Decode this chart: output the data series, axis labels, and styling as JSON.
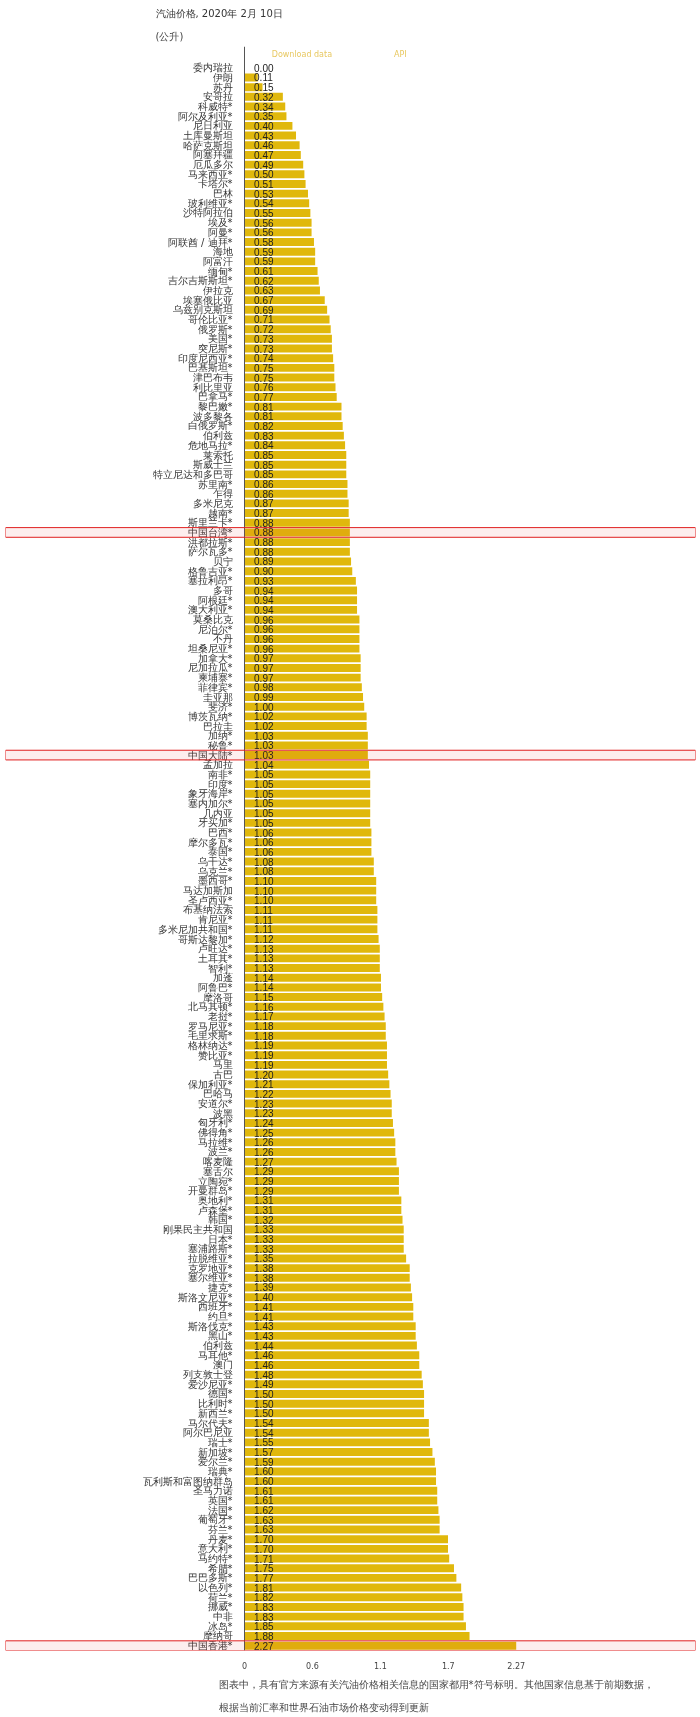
{
  "chart_data": {
    "type": "bar",
    "orientation": "horizontal",
    "title": "汽油价格, 2020年 2月 10日",
    "subtitle": "(公升)",
    "categories": [
      "委内瑞拉",
      "伊朗",
      "苏丹",
      "安哥拉",
      "科威特*",
      "阿尔及利亚*",
      "尼日利亚",
      "土库曼斯坦",
      "哈萨克斯坦",
      "阿塞拜疆",
      "厄瓜多尔",
      "马来西亚*",
      "卡塔尔*",
      "巴林",
      "玻利维亚*",
      "沙特阿拉伯",
      "埃及*",
      "阿曼*",
      "阿联酋 / 迪拜*",
      "海地",
      "阿富汗",
      "缅甸*",
      "吉尔吉斯斯坦*",
      "伊拉克",
      "埃塞俄比亚",
      "乌兹别克斯坦",
      "哥伦比亚*",
      "俄罗斯*",
      "美国*",
      "突尼斯*",
      "印度尼西亚*",
      "巴基斯坦*",
      "津巴布韦",
      "利比里亚",
      "巴拿马*",
      "黎巴嫩*",
      "波多黎各",
      "白俄罗斯*",
      "伯利兹",
      "危地马拉*",
      "莱索托",
      "斯威士兰",
      "特立尼达和多巴哥",
      "苏里南*",
      "乍得",
      "多米尼克",
      "越南*",
      "斯里兰卡*",
      "中国台湾*",
      "洪都拉斯*",
      "萨尔瓦多*",
      "贝宁",
      "格鲁吉亚*",
      "塞拉利昂*",
      "多哥",
      "阿根廷*",
      "澳大利亚*",
      "莫桑比克",
      "尼泊尔*",
      "不丹",
      "坦桑尼亚*",
      "加拿大*",
      "尼加拉瓜*",
      "柬埔寨*",
      "菲律宾*",
      "圭亚那",
      "斐济*",
      "博茨瓦纳*",
      "巴拉圭",
      "加纳*",
      "秘鲁*",
      "中国大陆*",
      "孟加拉",
      "南非*",
      "印度*",
      "象牙海岸*",
      "塞内加尔*",
      "几内亚",
      "牙买加*",
      "巴西*",
      "摩尔多瓦*",
      "泰国*",
      "乌干达*",
      "乌克兰*",
      "墨西哥*",
      "马达加斯加",
      "圣卢西亚*",
      "布基纳法索",
      "肯尼亚*",
      "多米尼加共和国*",
      "哥斯达黎加*",
      "卢旺达*",
      "土耳其*",
      "智利*",
      "加蓬",
      "阿鲁巴*",
      "摩洛哥",
      "北马其顿*",
      "老挝*",
      "罗马尼亚*",
      "毛里求斯*",
      "格林纳达*",
      "赞比亚*",
      "马里",
      "古巴",
      "保加利亚*",
      "巴哈马",
      "安道尔*",
      "波黑",
      "匈牙利*",
      "佛得角*",
      "马拉维*",
      "波兰*",
      "喀麦隆",
      "塞舌尔",
      "立陶宛*",
      "开曼群岛*",
      "奥地利*",
      "卢森堡*",
      "韩国*",
      "刚果民主共和国",
      "日本*",
      "塞浦路斯*",
      "拉脱维亚*",
      "克罗地亚*",
      "塞尔维亚*",
      "捷克*",
      "斯洛文尼亚*",
      "西班牙*",
      "约旦*",
      "斯洛伐克*",
      "黑山*",
      "伯利兹",
      "马耳他*",
      "澳门",
      "列支敦士登",
      "爱沙尼亚*",
      "德国*",
      "比利时*",
      "新西兰*",
      "马尔代夫*",
      "阿尔巴尼亚",
      "瑞士*",
      "新加坡*",
      "爱尔兰*",
      "瑞典*",
      "瓦利斯和富图纳群岛",
      "圣马力诺",
      "英国*",
      "法国*",
      "葡萄牙*",
      "芬兰*",
      "丹麦*",
      "意大利*",
      "马约特*",
      "希腊*",
      "巴巴多斯*",
      "以色列*",
      "荷兰*",
      "挪威*",
      "中非",
      "冰岛*",
      "摩纳哥",
      "中国香港*"
    ],
    "values": [
      0.0,
      0.11,
      0.15,
      0.32,
      0.34,
      0.35,
      0.4,
      0.43,
      0.46,
      0.47,
      0.49,
      0.5,
      0.51,
      0.53,
      0.54,
      0.55,
      0.56,
      0.56,
      0.58,
      0.59,
      0.59,
      0.61,
      0.62,
      0.63,
      0.67,
      0.69,
      0.71,
      0.72,
      0.73,
      0.73,
      0.74,
      0.75,
      0.75,
      0.76,
      0.77,
      0.81,
      0.81,
      0.82,
      0.83,
      0.84,
      0.85,
      0.85,
      0.85,
      0.86,
      0.86,
      0.87,
      0.87,
      0.88,
      0.88,
      0.88,
      0.88,
      0.89,
      0.9,
      0.93,
      0.94,
      0.94,
      0.94,
      0.96,
      0.96,
      0.96,
      0.96,
      0.97,
      0.97,
      0.97,
      0.98,
      0.99,
      1.0,
      1.02,
      1.02,
      1.03,
      1.03,
      1.03,
      1.04,
      1.05,
      1.05,
      1.05,
      1.05,
      1.05,
      1.05,
      1.06,
      1.06,
      1.06,
      1.08,
      1.08,
      1.1,
      1.1,
      1.1,
      1.11,
      1.11,
      1.11,
      1.12,
      1.13,
      1.13,
      1.13,
      1.14,
      1.14,
      1.15,
      1.16,
      1.17,
      1.18,
      1.18,
      1.19,
      1.19,
      1.19,
      1.2,
      1.21,
      1.22,
      1.23,
      1.23,
      1.24,
      1.25,
      1.26,
      1.26,
      1.27,
      1.29,
      1.29,
      1.29,
      1.31,
      1.31,
      1.32,
      1.33,
      1.33,
      1.33,
      1.35,
      1.38,
      1.38,
      1.39,
      1.4,
      1.41,
      1.41,
      1.43,
      1.43,
      1.44,
      1.46,
      1.46,
      1.48,
      1.49,
      1.5,
      1.5,
      1.5,
      1.54,
      1.54,
      1.55,
      1.57,
      1.59,
      1.6,
      1.6,
      1.61,
      1.61,
      1.62,
      1.63,
      1.63,
      1.7,
      1.7,
      1.71,
      1.75,
      1.77,
      1.81,
      1.82,
      1.83,
      1.83,
      1.85,
      1.88,
      2.27
    ],
    "value_labels": [
      "0.00",
      "0.11",
      "0.15",
      "0.32",
      "0.34",
      "0.35",
      "0.40",
      "0.43",
      "0.46",
      "0.47",
      "0.49",
      "0.50",
      "0.51",
      "0.53",
      "0.54",
      "0.55",
      "0.56",
      "0.56",
      "0.58",
      "0.59",
      "0.59",
      "0.61",
      "0.62",
      "0.63",
      "0.67",
      "0.69",
      "0.71",
      "0.72",
      "0.73",
      "0.73",
      "0.74",
      "0.75",
      "0.75",
      "0.76",
      "0.77",
      "0.81",
      "0.81",
      "0.82",
      "0.83",
      "0.84",
      "0.85",
      "0.85",
      "0.85",
      "0.86",
      "0.86",
      "0.87",
      "0.87",
      "0.88",
      "0.88",
      "0.88",
      "0.88",
      "0.89",
      "0.90",
      "0.93",
      "0.94",
      "0.94",
      "0.94",
      "0.96",
      "0.96",
      "0.96",
      "0.96",
      "0.97",
      "0.97",
      "0.97",
      "0.98",
      "0.99",
      "1.00",
      "1.02",
      "1.02",
      "1.03",
      "1.03",
      "1.03",
      "1.04",
      "1.05",
      "1.05",
      "1.05",
      "1.05",
      "1.05",
      "1.05",
      "1.06",
      "1.06",
      "1.06",
      "1.08",
      "1.08",
      "1.10",
      "1.10",
      "1.10",
      "1.11",
      "1.11",
      "1.11",
      "1.12",
      "1.13",
      "1.13",
      "1.13",
      "1.14",
      "1.14",
      "1.15",
      "1.16",
      "1.17",
      "1.18",
      "1.18",
      "1.19",
      "1.19",
      "1.19",
      "1.20",
      "1.21",
      "1.22",
      "1.23",
      "1.23",
      "1.24",
      "1.25",
      "1.26",
      "1.26",
      "1.27",
      "1.29",
      "1.29",
      "1.29",
      "1.31",
      "1.31",
      "1.32",
      "1.33",
      "1.33",
      "1.33",
      "1.35",
      "1.38",
      "1.38",
      "1.39",
      "1.40",
      "1.41",
      "1.41",
      "1.43",
      "1.43",
      "1.44",
      "1.46",
      "1.46",
      "1.48",
      "1.49",
      "1.50",
      "1.50",
      "1.50",
      "1.54",
      "1.54",
      "1.55",
      "1.57",
      "1.59",
      "1.60",
      "1.60",
      "1.61",
      "1.61",
      "1.62",
      "1.63",
      "1.63",
      "1.70",
      "1.70",
      "1.71",
      "1.75",
      "1.77",
      "1.81",
      "1.82",
      "1.83",
      "1.83",
      "1.85",
      "1.88",
      "2.27"
    ],
    "color": "#e0b80c",
    "xlim": [
      0,
      2.27
    ],
    "xticks": [
      0,
      {
        "value": 0.5675,
        "label": "0.6"
      },
      {
        "value": 1.135,
        "label": "1.1"
      },
      {
        "value": 1.7025,
        "label": "1.7"
      },
      2.27
    ],
    "grid": false,
    "bands": [
      {
        "axis": "y",
        "from": "中国台湾*",
        "to": "中国台湾*",
        "color": "#e02020"
      },
      {
        "axis": "y",
        "from": "中国大陆*",
        "to": "中国大陆*",
        "color": "#e02020"
      },
      {
        "axis": "y",
        "from": "中国香港*",
        "to": "中国香港*",
        "color": "#e02020"
      }
    ],
    "annotations": [
      "Download data",
      "API",
      "图表中，具有官方来源有关汽油价格相关信息的国家都用*符号标明。其他国家信息基于前期数据，根据当前汇率和世界石油市场价格变动得到更新"
    ]
  }
}
